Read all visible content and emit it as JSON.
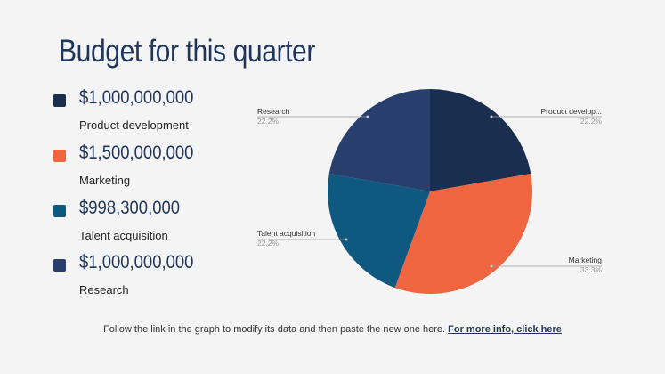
{
  "title": "Budget for this quarter",
  "legend": [
    {
      "amount": "$1,000,000,000",
      "label": "Product development",
      "color": "#1a2f4f"
    },
    {
      "amount": "$1,500,000,000",
      "label": "Marketing",
      "color": "#ee6540"
    },
    {
      "amount": "$998,300,000",
      "label": "Talent acquisition",
      "color": "#0f587f"
    },
    {
      "amount": "$1,000,000,000",
      "label": "Research",
      "color": "#283f6d"
    }
  ],
  "chart_data": {
    "type": "pie",
    "categories": [
      "Product develop...",
      "Marketing",
      "Talent acquisition",
      "Research"
    ],
    "values": [
      22.2,
      33.3,
      22.2,
      22.2
    ],
    "value_labels": [
      "22.2%",
      "33.3%",
      "22.2%",
      "22.2%"
    ],
    "colors": [
      "#1a2f4f",
      "#ee6540",
      "#0f587f",
      "#283f6d"
    ],
    "legend": "none"
  },
  "footer": {
    "text": "Follow the link in the graph to modify its data and then paste the new one here. ",
    "link": "For more info, click here"
  }
}
